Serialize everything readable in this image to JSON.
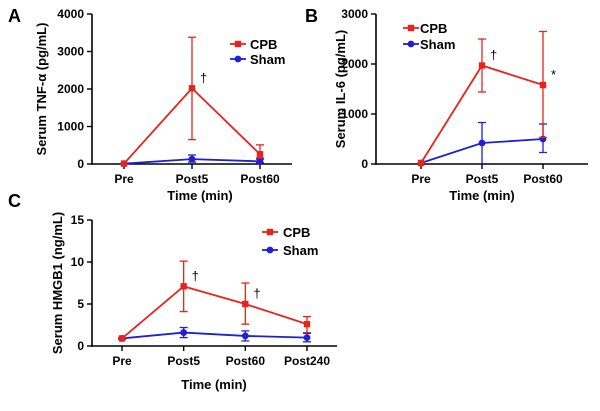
{
  "colors": {
    "cpb": "#e8231c",
    "sham": "#1f1fd6"
  },
  "chart_data": [
    {
      "panel": "A",
      "type": "line",
      "categories": [
        "Pre",
        "Post5",
        "Post60"
      ],
      "xlabel": "Time (min)",
      "ylabel": "Serum TNF-α (pg/mL)",
      "ylim": [
        0,
        4000
      ],
      "yticks": [
        "0",
        "1000",
        "2000",
        "3000",
        "4000"
      ],
      "series": [
        {
          "name": "CPB",
          "values": [
            10,
            2020,
            260
          ],
          "err_low": [
            0,
            1370,
            100
          ],
          "err_high": [
            0,
            1360,
            250
          ]
        },
        {
          "name": "Sham",
          "values": [
            10,
            130,
            70
          ],
          "err_low": [
            0,
            80,
            40
          ],
          "err_high": [
            0,
            110,
            60
          ]
        }
      ],
      "annotations": [
        {
          "text": "†",
          "category": "Post5",
          "series": "CPB"
        }
      ]
    },
    {
      "panel": "B",
      "type": "line",
      "categories": [
        "Pre",
        "Post5",
        "Post60"
      ],
      "xlabel": "Time (min)",
      "ylabel": "Serum IL-6 (pg/mL)",
      "ylim": [
        0,
        3000
      ],
      "yticks": [
        "0",
        "1000",
        "2000",
        "3000"
      ],
      "series": [
        {
          "name": "CPB",
          "values": [
            20,
            1970,
            1580
          ],
          "err_low": [
            0,
            530,
            1050
          ],
          "err_high": [
            0,
            530,
            1070
          ]
        },
        {
          "name": "Sham",
          "values": [
            20,
            420,
            500
          ],
          "err_low": [
            0,
            420,
            270
          ],
          "err_high": [
            0,
            410,
            300
          ]
        }
      ],
      "annotations": [
        {
          "text": "†",
          "category": "Post5",
          "series": "CPB"
        },
        {
          "text": "*",
          "category": "Post60",
          "series": "CPB"
        }
      ]
    },
    {
      "panel": "C",
      "type": "line",
      "categories": [
        "Pre",
        "Post5",
        "Post60",
        "Post240"
      ],
      "xlabel": "Time (min)",
      "ylabel": "Serum HMGB1 (ng/mL)",
      "ylim": [
        0,
        15
      ],
      "yticks": [
        "0",
        "5",
        "10",
        "15"
      ],
      "series": [
        {
          "name": "CPB",
          "values": [
            0.9,
            7.1,
            5.0,
            2.6
          ],
          "err_low": [
            0.1,
            3.0,
            2.4,
            1.0
          ],
          "err_high": [
            0.1,
            3.0,
            2.5,
            0.9
          ]
        },
        {
          "name": "Sham",
          "values": [
            0.9,
            1.6,
            1.2,
            1.0
          ],
          "err_low": [
            0.1,
            0.6,
            0.6,
            0.5
          ],
          "err_high": [
            0.1,
            0.6,
            0.6,
            0.5
          ]
        }
      ],
      "annotations": [
        {
          "text": "†",
          "category": "Post5",
          "series": "CPB"
        },
        {
          "text": "†",
          "category": "Post60",
          "series": "CPB"
        }
      ]
    }
  ]
}
